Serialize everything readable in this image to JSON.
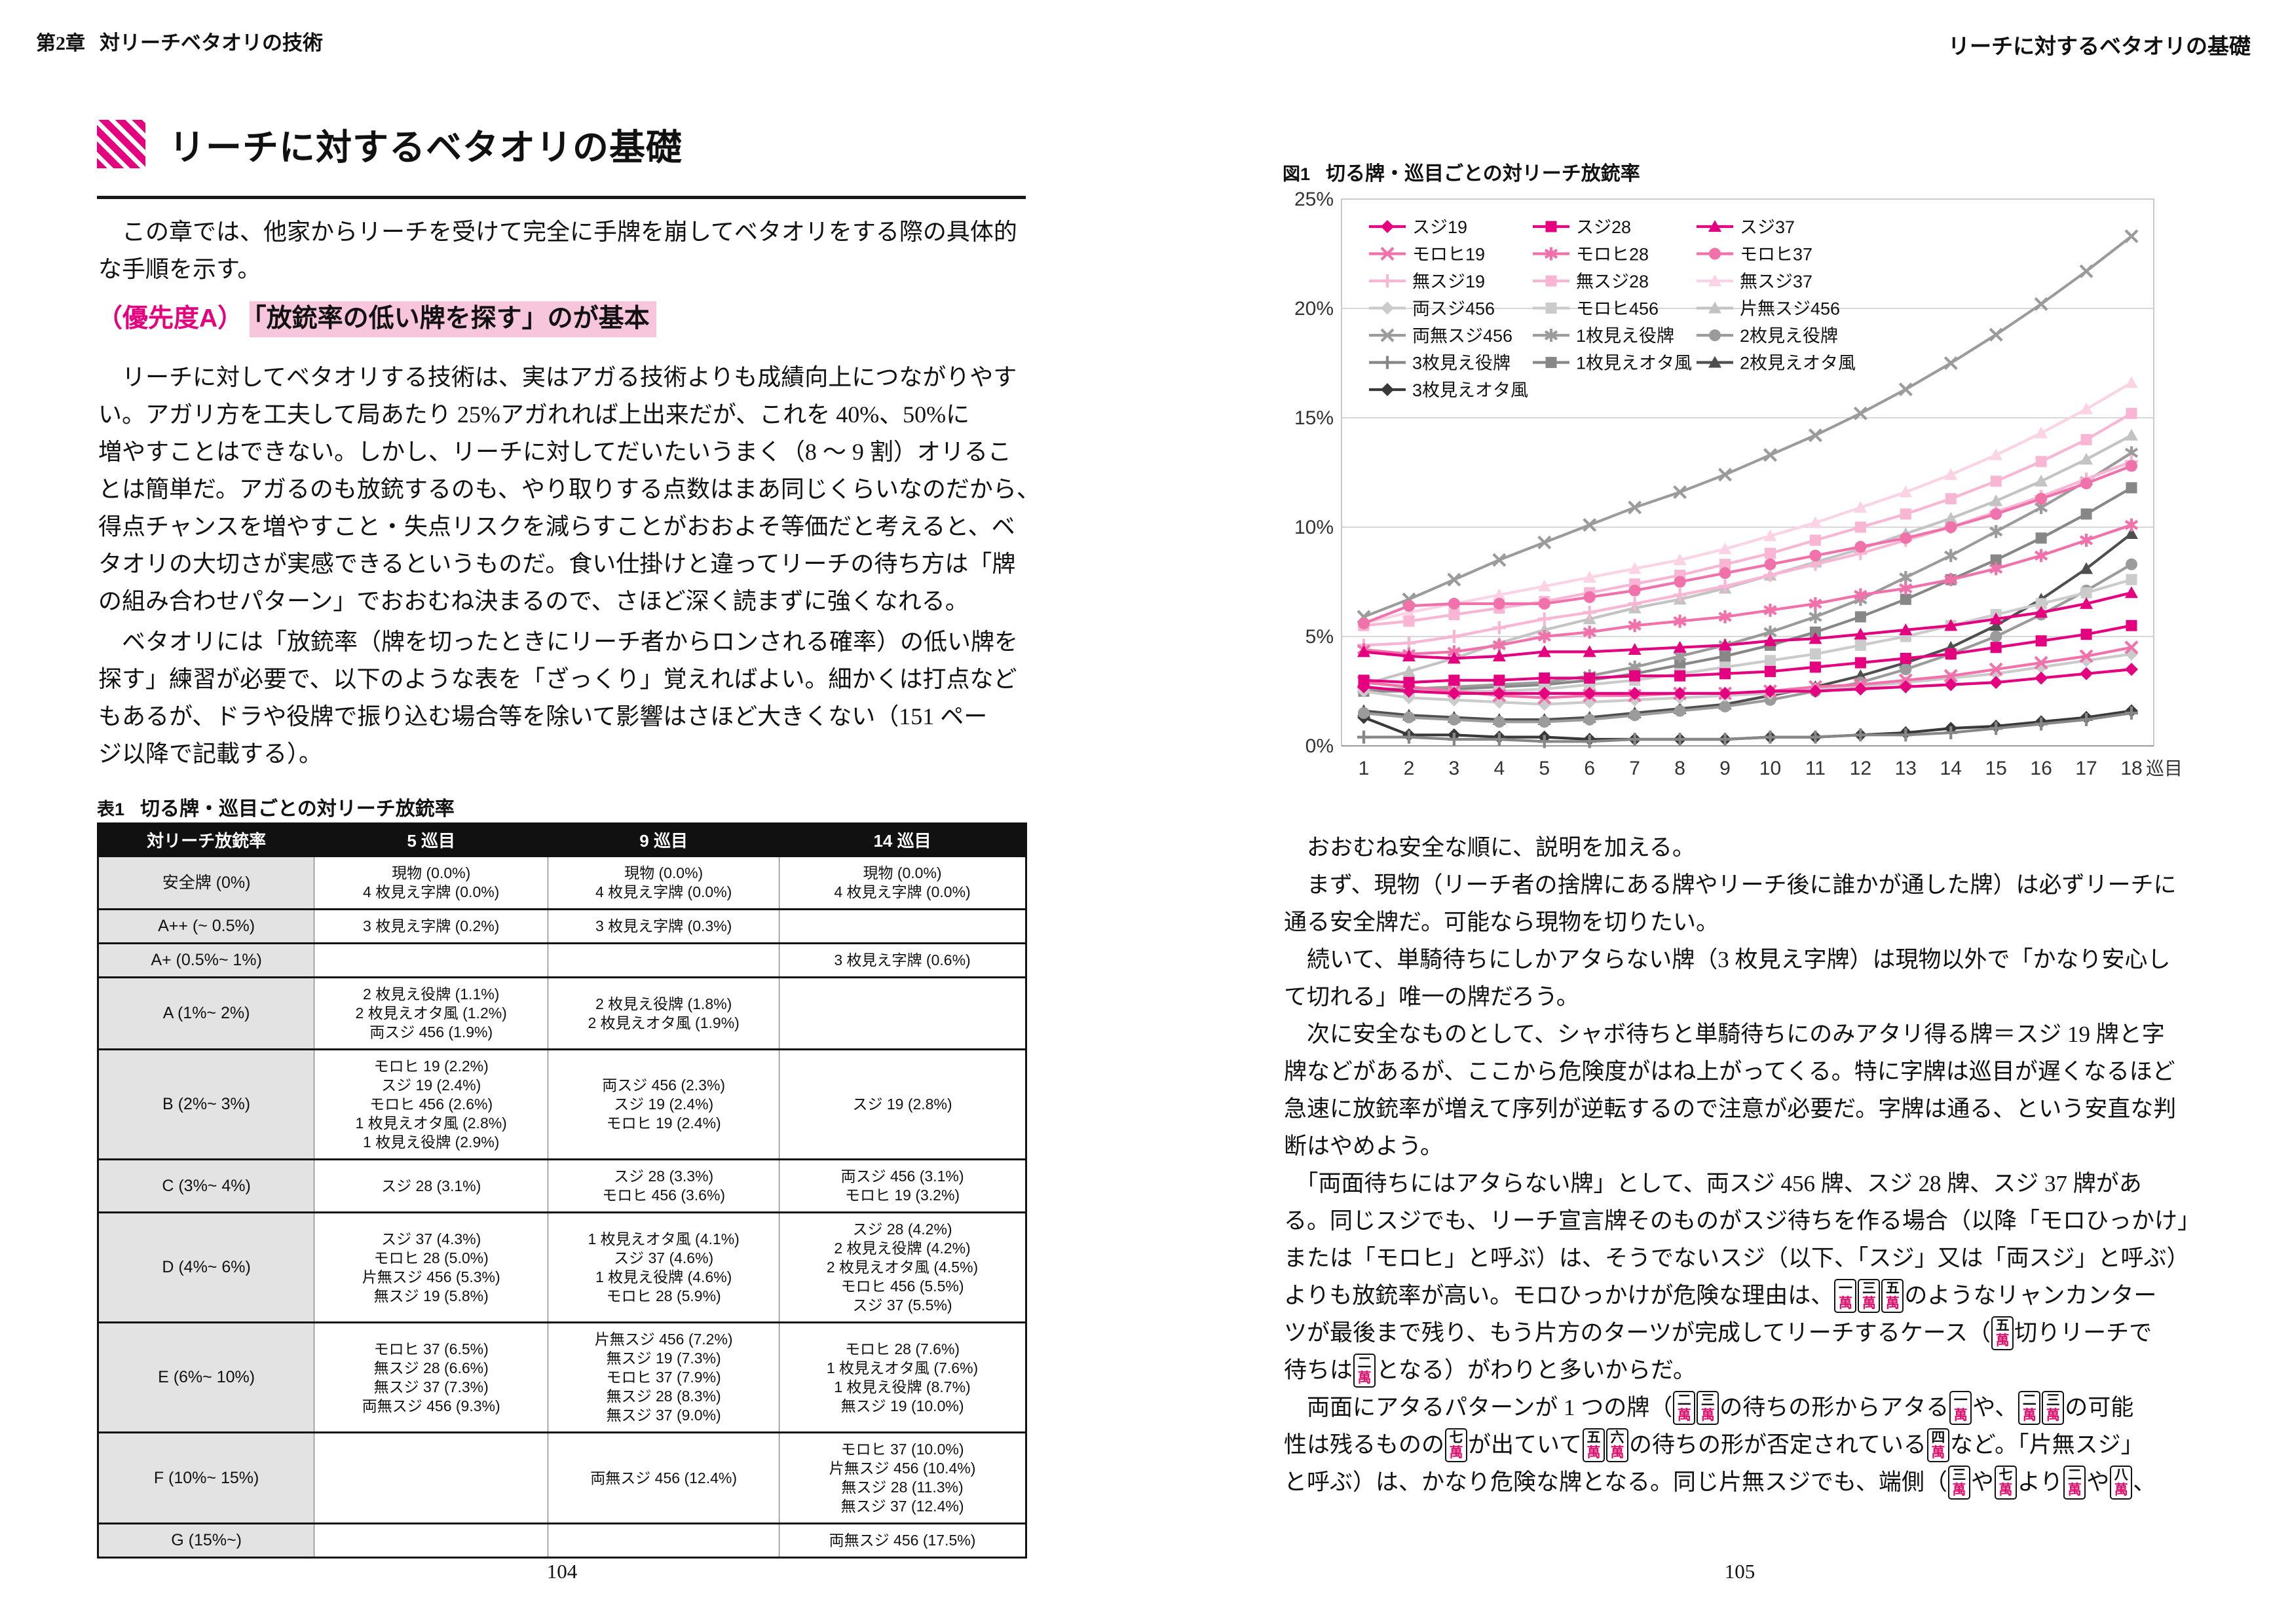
{
  "accent_color": "#e4007f",
  "highlight_color": "#f7c6dc",
  "left_page": {
    "header_chapter": "第2章",
    "header_title": "対リーチベタオリの技術",
    "section_title": "リーチに対するベタオリの基礎",
    "intro_lines": [
      "　この章では、他家からリーチを受けて完全に手牌を崩してベタオリをする際の具体的",
      "な手順を示す。"
    ],
    "priority_label": "（優先度A）",
    "priority_heading": "「放銃率の低い牌を探す」のが基本",
    "body1_lines": [
      "　リーチに対してベタオリする技術は、実はアガる技術よりも成績向上につながりやす",
      "い。アガリ方を工夫して局あたり 25%アガれれば上出来だが、これを 40%、50%に",
      "増やすことはできない。しかし、リーチに対してだいたいうまく（8 〜 9 割）オリるこ",
      "とは簡単だ。アガるのも放銃するのも、やり取りする点数はまあ同じくらいなのだから、",
      "得点チャンスを増やすこと・失点リスクを減らすことがおおよそ等価だと考えると、ベ",
      "タオリの大切さが実感できるというものだ。食い仕掛けと違ってリーチの待ち方は「牌",
      "の組み合わせパターン」でおおむね決まるので、さほど深く読まずに強くなれる。"
    ],
    "body2_lines": [
      "　ベタオリには「放銃率（牌を切ったときにリーチ者からロンされる確率）の低い牌を",
      "探す」練習が必要で、以下のような表を「ざっくり」覚えればよい。細かくは打点など",
      "もあるが、ドラや役牌で振り込む場合等を除いて影響はさほど大きくない（151 ペー",
      "ジ以降で記載する）。"
    ],
    "table": {
      "label": "表1",
      "title": "切る牌・巡目ごとの対リーチ放銃率",
      "columns": [
        "対リーチ放銃率",
        "5 巡目",
        "9 巡目",
        "14 巡目"
      ],
      "rows": [
        {
          "cat": "安全牌 (0%)",
          "c5": [
            "現物 (0.0%)",
            "4 枚見え字牌 (0.0%)"
          ],
          "c9": [
            "現物 (0.0%)",
            "4 枚見え字牌 (0.0%)"
          ],
          "c14": [
            "現物 (0.0%)",
            "4 枚見え字牌 (0.0%)"
          ]
        },
        {
          "cat": "A++ (~ 0.5%)",
          "c5": [
            "3 枚見え字牌 (0.2%)"
          ],
          "c9": [
            "3 枚見え字牌 (0.3%)"
          ],
          "c14": []
        },
        {
          "cat": "A+ (0.5%~ 1%)",
          "c5": [],
          "c9": [],
          "c14": [
            "3 枚見え字牌 (0.6%)"
          ]
        },
        {
          "cat": "A (1%~ 2%)",
          "c5": [
            "2 枚見え役牌 (1.1%)",
            "2 枚見えオタ風 (1.2%)",
            "両スジ 456 (1.9%)"
          ],
          "c9": [
            "2 枚見え役牌 (1.8%)",
            "2 枚見えオタ風 (1.9%)"
          ],
          "c14": []
        },
        {
          "cat": "B (2%~ 3%)",
          "c5": [
            "モロヒ 19 (2.2%)",
            "スジ 19 (2.4%)",
            "モロヒ 456 (2.6%)",
            "1 枚見えオタ風 (2.8%)",
            "1 枚見え役牌 (2.9%)"
          ],
          "c9": [
            "両スジ 456 (2.3%)",
            "スジ 19 (2.4%)",
            "モロヒ 19 (2.4%)"
          ],
          "c14": [
            "スジ 19 (2.8%)"
          ]
        },
        {
          "cat": "C (3%~ 4%)",
          "c5": [
            "スジ 28 (3.1%)"
          ],
          "c9": [
            "スジ 28 (3.3%)",
            "モロヒ 456 (3.6%)"
          ],
          "c14": [
            "両スジ 456 (3.1%)",
            "モロヒ 19 (3.2%)"
          ]
        },
        {
          "cat": "D (4%~ 6%)",
          "c5": [
            "スジ 37 (4.3%)",
            "モロヒ 28 (5.0%)",
            "片無スジ 456 (5.3%)",
            "無スジ 19 (5.8%)"
          ],
          "c9": [
            "1 枚見えオタ風 (4.1%)",
            "スジ 37 (4.6%)",
            "1 枚見え役牌 (4.6%)",
            "モロヒ 28 (5.9%)"
          ],
          "c14": [
            "スジ 28 (4.2%)",
            "2 枚見え役牌 (4.2%)",
            "2 枚見えオタ風 (4.5%)",
            "モロヒ 456 (5.5%)",
            "スジ 37 (5.5%)"
          ]
        },
        {
          "cat": "E (6%~ 10%)",
          "c5": [
            "モロヒ 37 (6.5%)",
            "無スジ 28 (6.6%)",
            "無スジ 37 (7.3%)",
            "両無スジ 456 (9.3%)"
          ],
          "c9": [
            "片無スジ 456 (7.2%)",
            "無スジ 19 (7.3%)",
            "モロヒ 37 (7.9%)",
            "無スジ 28 (8.3%)",
            "無スジ 37 (9.0%)"
          ],
          "c14": [
            "モロヒ 28 (7.6%)",
            "1 枚見えオタ風 (7.6%)",
            "1 枚見え役牌 (8.7%)",
            "無スジ 19 (10.0%)"
          ]
        },
        {
          "cat": "F (10%~ 15%)",
          "c5": [],
          "c9": [
            "両無スジ 456 (12.4%)"
          ],
          "c14": [
            "モロヒ 37 (10.0%)",
            "片無スジ 456 (10.4%)",
            "無スジ 28 (11.3%)",
            "無スジ 37 (12.4%)"
          ]
        },
        {
          "cat": "G (15%~)",
          "c5": [],
          "c9": [],
          "c14": [
            "両無スジ 456 (17.5%)"
          ]
        }
      ]
    },
    "page_number": "104"
  },
  "right_page": {
    "header_title": "リーチに対するベタオリの基礎",
    "figure_label": "図1",
    "figure_title": "切る牌・巡目ごとの対リーチ放銃率",
    "page_number": "105",
    "paragraph_lines": [
      [
        {
          "t": "　おおむね安全な順に、説明を加える。"
        }
      ],
      [
        {
          "t": "　まず、現物（リーチ者の捨牌にある牌やリーチ後に誰かが通した牌）は必ずリーチに"
        }
      ],
      [
        {
          "t": "通る安全牌だ。可能なら現物を切りたい。"
        }
      ],
      [
        {
          "t": "　続いて、単騎待ちにしかアタらない牌（3 枚見え字牌）は現物以外で「かなり安心し"
        }
      ],
      [
        {
          "t": "て切れる」唯一の牌だろう。"
        }
      ],
      [
        {
          "t": "　次に安全なものとして、シャボ待ちと単騎待ちにのみアタリ得る牌＝スジ 19 牌と字"
        }
      ],
      [
        {
          "t": "牌などがあるが、ここから危険度がはね上がってくる。特に字牌は巡目が遅くなるほど"
        }
      ],
      [
        {
          "t": "急速に放銃率が増えて序列が逆転するので注意が必要だ。字牌は通る、という安直な判"
        }
      ],
      [
        {
          "t": "断はやめよう。"
        }
      ],
      [
        {
          "t": "　「両面待ちにはアタらない牌」として、両スジ 456 牌、スジ 28 牌、スジ 37 牌があ"
        }
      ],
      [
        {
          "t": "る。同じスジでも、リーチ宣言牌そのものがスジ待ちを作る場合（以降「モロひっかけ」"
        }
      ],
      [
        {
          "t": "または「モロヒ」と呼ぶ）は、そうでないスジ（以下、「スジ」又は「両スジ」と呼ぶ）"
        }
      ],
      [
        {
          "t": "よりも放銃率が高い。モロひっかけが危険な理由は、"
        },
        {
          "tiles": [
            "一",
            "三",
            "五"
          ]
        },
        {
          "t": "のようなリャンカンター"
        }
      ],
      [
        {
          "t": "ツが最後まで残り、もう片方のターツが完成してリーチするケース（"
        },
        {
          "tiles": [
            "五"
          ]
        },
        {
          "t": "切りリーチで"
        }
      ],
      [
        {
          "t": "待ちは"
        },
        {
          "tiles": [
            "二"
          ]
        },
        {
          "t": "となる）がわりと多いからだ。"
        }
      ],
      [
        {
          "t": "　両面にアタるパターンが 1 つの牌（"
        },
        {
          "tiles": [
            "二",
            "三"
          ]
        },
        {
          "t": "の待ちの形からアタる"
        },
        {
          "tiles": [
            "一"
          ]
        },
        {
          "t": "や、"
        },
        {
          "tiles": [
            "二",
            "三"
          ]
        },
        {
          "t": "の可能"
        }
      ],
      [
        {
          "t": "性は残るものの"
        },
        {
          "tiles": [
            "七"
          ]
        },
        {
          "t": "が出ていて"
        },
        {
          "tiles": [
            "五",
            "六"
          ]
        },
        {
          "t": "の待ちの形が否定されている"
        },
        {
          "tiles": [
            "四"
          ]
        },
        {
          "t": "など。「片無スジ」"
        }
      ],
      [
        {
          "t": "と呼ぶ）は、かなり危険な牌となる。同じ片無スジでも、端側（"
        },
        {
          "tiles": [
            "三"
          ]
        },
        {
          "t": "や"
        },
        {
          "tiles": [
            "七"
          ]
        },
        {
          "t": "より"
        },
        {
          "tiles": [
            "二"
          ]
        },
        {
          "t": "や"
        },
        {
          "tiles": [
            "八"
          ]
        },
        {
          "t": "、"
        }
      ]
    ],
    "tile_suit_char": "萬"
  },
  "chart_data": {
    "type": "line",
    "title": "切る牌・巡目ごとの対リーチ放銃率",
    "x": [
      1,
      2,
      3,
      4,
      5,
      6,
      7,
      8,
      9,
      10,
      11,
      12,
      13,
      14,
      15,
      16,
      17,
      18
    ],
    "x_unit_label": "巡目",
    "ylim": [
      0,
      25
    ],
    "ytick_labels": [
      "0%",
      "5%",
      "10%",
      "15%",
      "20%",
      "25%"
    ],
    "grid": true,
    "legend_position": "top-left-inside",
    "legend_columns": 3,
    "series": [
      {
        "name": "スジ19",
        "color": "#e4007f",
        "marker": "diamond",
        "values": [
          2.7,
          2.5,
          2.4,
          2.4,
          2.4,
          2.4,
          2.4,
          2.4,
          2.4,
          2.5,
          2.5,
          2.6,
          2.7,
          2.8,
          2.9,
          3.1,
          3.3,
          3.5
        ]
      },
      {
        "name": "スジ28",
        "color": "#e4007f",
        "marker": "square",
        "values": [
          3.0,
          2.9,
          3.0,
          3.0,
          3.1,
          3.1,
          3.2,
          3.2,
          3.3,
          3.4,
          3.6,
          3.8,
          4.0,
          4.2,
          4.5,
          4.8,
          5.1,
          5.5
        ]
      },
      {
        "name": "スジ37",
        "color": "#e4007f",
        "marker": "triangle",
        "values": [
          4.3,
          4.1,
          4.0,
          4.1,
          4.3,
          4.3,
          4.4,
          4.5,
          4.6,
          4.8,
          4.9,
          5.1,
          5.3,
          5.5,
          5.8,
          6.1,
          6.5,
          7.0
        ]
      },
      {
        "name": "モロヒ19",
        "color": "#f172ab",
        "marker": "x",
        "values": [
          2.9,
          2.7,
          2.5,
          2.3,
          2.2,
          2.3,
          2.3,
          2.4,
          2.4,
          2.5,
          2.7,
          2.8,
          3.0,
          3.2,
          3.5,
          3.8,
          4.1,
          4.5
        ]
      },
      {
        "name": "モロヒ28",
        "color": "#f172ab",
        "marker": "asterisk",
        "values": [
          4.4,
          4.2,
          4.3,
          4.6,
          5.0,
          5.2,
          5.5,
          5.7,
          5.9,
          6.2,
          6.5,
          6.9,
          7.2,
          7.6,
          8.1,
          8.7,
          9.4,
          10.1
        ]
      },
      {
        "name": "モロヒ37",
        "color": "#f172ab",
        "marker": "circle",
        "values": [
          5.6,
          6.4,
          6.5,
          6.5,
          6.5,
          6.8,
          7.1,
          7.5,
          7.9,
          8.3,
          8.7,
          9.1,
          9.5,
          10.0,
          10.6,
          11.3,
          12.0,
          12.8
        ]
      },
      {
        "name": "無スジ19",
        "color": "#f9b6d4",
        "marker": "plus",
        "values": [
          4.6,
          4.7,
          5.0,
          5.4,
          5.8,
          6.1,
          6.5,
          6.9,
          7.3,
          7.8,
          8.3,
          8.8,
          9.4,
          10.0,
          10.7,
          11.4,
          12.2,
          13.0
        ]
      },
      {
        "name": "無スジ28",
        "color": "#f9b6d4",
        "marker": "square",
        "values": [
          5.5,
          5.7,
          6.0,
          6.3,
          6.6,
          7.0,
          7.4,
          7.8,
          8.3,
          8.8,
          9.4,
          10.0,
          10.6,
          11.3,
          12.1,
          13.0,
          14.0,
          15.2
        ]
      },
      {
        "name": "無スジ37",
        "color": "#fbd3e5",
        "marker": "triangle",
        "values": [
          5.6,
          6.1,
          6.5,
          6.9,
          7.3,
          7.7,
          8.1,
          8.5,
          9.0,
          9.6,
          10.2,
          10.9,
          11.6,
          12.4,
          13.3,
          14.3,
          15.4,
          16.6
        ]
      },
      {
        "name": "両スジ456",
        "color": "#cbcbcb",
        "marker": "diamond",
        "values": [
          2.5,
          2.2,
          2.1,
          2.0,
          1.9,
          2.0,
          2.1,
          2.2,
          2.3,
          2.4,
          2.6,
          2.7,
          2.9,
          3.1,
          3.3,
          3.6,
          3.9,
          4.2
        ]
      },
      {
        "name": "モロヒ456",
        "color": "#cbcbcb",
        "marker": "square",
        "values": [
          2.7,
          2.5,
          2.5,
          2.5,
          2.6,
          2.8,
          3.0,
          3.3,
          3.6,
          3.9,
          4.2,
          4.6,
          5.0,
          5.5,
          6.0,
          6.5,
          7.0,
          7.6
        ]
      },
      {
        "name": "片無スジ456",
        "color": "#c3c3c3",
        "marker": "triangle",
        "values": [
          2.8,
          3.4,
          4.0,
          4.7,
          5.3,
          5.8,
          6.3,
          6.7,
          7.2,
          7.8,
          8.4,
          9.0,
          9.7,
          10.4,
          11.2,
          12.1,
          13.1,
          14.2
        ]
      },
      {
        "name": "両無スジ456",
        "color": "#9b9b9b",
        "marker": "x",
        "values": [
          5.9,
          6.7,
          7.6,
          8.5,
          9.3,
          10.1,
          10.9,
          11.6,
          12.4,
          13.3,
          14.2,
          15.2,
          16.3,
          17.5,
          18.8,
          20.2,
          21.7,
          23.3
        ]
      },
      {
        "name": "1枚見え役牌",
        "color": "#9b9b9b",
        "marker": "asterisk",
        "values": [
          2.6,
          2.6,
          2.7,
          2.8,
          2.9,
          3.2,
          3.6,
          4.1,
          4.6,
          5.2,
          5.9,
          6.7,
          7.7,
          8.7,
          9.8,
          10.9,
          12.1,
          13.4
        ]
      },
      {
        "name": "2枚見え役牌",
        "color": "#9b9b9b",
        "marker": "circle",
        "values": [
          1.5,
          1.3,
          1.2,
          1.1,
          1.1,
          1.2,
          1.4,
          1.6,
          1.8,
          2.1,
          2.5,
          2.9,
          3.5,
          4.2,
          5.0,
          6.0,
          7.1,
          8.3
        ]
      },
      {
        "name": "3枚見え役牌",
        "color": "#878787",
        "marker": "plus",
        "values": [
          0.4,
          0.4,
          0.3,
          0.3,
          0.2,
          0.2,
          0.3,
          0.3,
          0.3,
          0.4,
          0.4,
          0.5,
          0.5,
          0.6,
          0.8,
          1.0,
          1.2,
          1.5
        ]
      },
      {
        "name": "1枚見えオタ風",
        "color": "#878787",
        "marker": "square",
        "values": [
          2.5,
          2.5,
          2.6,
          2.7,
          2.8,
          3.0,
          3.3,
          3.7,
          4.1,
          4.6,
          5.2,
          5.9,
          6.7,
          7.6,
          8.5,
          9.5,
          10.6,
          11.8
        ]
      },
      {
        "name": "2枚見えオタ風",
        "color": "#4f4f4f",
        "marker": "triangle",
        "values": [
          1.6,
          1.4,
          1.3,
          1.2,
          1.2,
          1.3,
          1.5,
          1.7,
          1.9,
          2.3,
          2.7,
          3.2,
          3.8,
          4.5,
          5.5,
          6.7,
          8.1,
          9.7
        ]
      },
      {
        "name": "3枚見えオタ風",
        "color": "#393939",
        "marker": "diamond",
        "values": [
          1.3,
          0.5,
          0.5,
          0.4,
          0.4,
          0.3,
          0.3,
          0.3,
          0.3,
          0.4,
          0.4,
          0.5,
          0.6,
          0.8,
          0.9,
          1.1,
          1.3,
          1.6
        ]
      }
    ]
  }
}
